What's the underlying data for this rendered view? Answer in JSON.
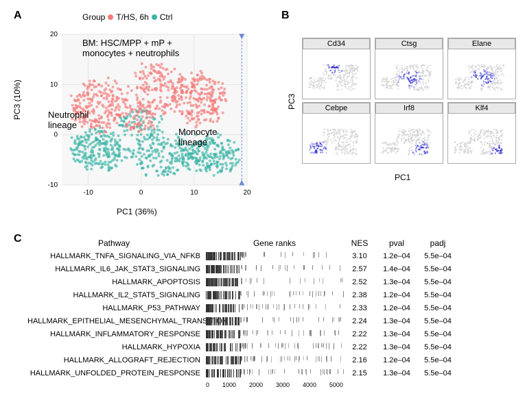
{
  "panelA": {
    "label": "A",
    "legend_title": "Group",
    "groups": [
      {
        "name": "T/HS, 6h",
        "color": "#f47a7a"
      },
      {
        "name": "Ctrl",
        "color": "#3bb6a8"
      }
    ],
    "xlabel": "PC1 (36%)",
    "ylabel": "PC3 (10%)",
    "xlim": [
      -15,
      20
    ],
    "ylim": [
      -10,
      20
    ],
    "xticks": [
      -10,
      0,
      10,
      20
    ],
    "yticks": [
      -10,
      0,
      10,
      20
    ],
    "annotations": {
      "title": "BM: HSC/MPP + mP +\nmonocytes + neutrophils",
      "neutrophil": "Neutrophil\nlineage",
      "monocyte": "Monocyte\nlineage"
    },
    "arrow_color": "#6a8bd4",
    "point_size": 2,
    "grid_color": "#e5e5e5"
  },
  "panelB": {
    "label": "B",
    "xlabel": "PC1",
    "ylabel": "PC3",
    "facets": [
      "Cd34",
      "Ctsg",
      "Elane",
      "Cebpe",
      "Irf8",
      "Klf4"
    ],
    "low_color": "#d0d0d0",
    "high_color": "#3333cc",
    "strip_bg": "#e8e8e8"
  },
  "panelC": {
    "label": "C",
    "headers": {
      "pathway": "Pathway",
      "ranks": "Gene ranks",
      "nes": "NES",
      "pval": "pval",
      "padj": "padj"
    },
    "rank_xaxis": [
      0,
      1000,
      2000,
      3000,
      4000,
      5000
    ],
    "rows": [
      {
        "name": "HALLMARK_TNFA_SIGNALING_VIA_NFKB",
        "nes": "3.10",
        "pval": "1.2e–04",
        "padj": "5.5e–04",
        "left_density": 0.9
      },
      {
        "name": "HALLMARK_IL6_JAK_STAT3_SIGNALING",
        "nes": "2.57",
        "pval": "1.4e–04",
        "padj": "5.5e–04",
        "left_density": 0.82
      },
      {
        "name": "HALLMARK_APOPTOSIS",
        "nes": "2.52",
        "pval": "1.3e–04",
        "padj": "5.5e–04",
        "left_density": 0.8
      },
      {
        "name": "HALLMARK_IL2_STAT5_SIGNALING",
        "nes": "2.38",
        "pval": "1.2e–04",
        "padj": "5.5e–04",
        "left_density": 0.78
      },
      {
        "name": "HALLMARK_P53_PATHWAY",
        "nes": "2.33",
        "pval": "1.2e–04",
        "padj": "5.5e–04",
        "left_density": 0.76
      },
      {
        "name": "HALLMARK_EPITHELIAL_MESENCHYMAL_TRANSITION",
        "nes": "2.24",
        "pval": "1.3e–04",
        "padj": "5.5e–04",
        "left_density": 0.74
      },
      {
        "name": "HALLMARK_INFLAMMATORY_RESPONSE",
        "nes": "2.22",
        "pval": "1.3e–04",
        "padj": "5.5e–04",
        "left_density": 0.73
      },
      {
        "name": "HALLMARK_HYPOXIA",
        "nes": "2.22",
        "pval": "1.3e–04",
        "padj": "5.5e–04",
        "left_density": 0.72
      },
      {
        "name": "HALLMARK_ALLOGRAFT_REJECTION",
        "nes": "2.16",
        "pval": "1.2e–04",
        "padj": "5.5e–04",
        "left_density": 0.7
      },
      {
        "name": "HALLMARK_UNFOLDED_PROTEIN_RESPONSE",
        "nes": "2.15",
        "pval": "1.3e–04",
        "padj": "5.5e–04",
        "left_density": 0.7
      }
    ],
    "tick_color": "#333333"
  },
  "colors": {
    "text": "#000000",
    "bg": "#ffffff"
  }
}
